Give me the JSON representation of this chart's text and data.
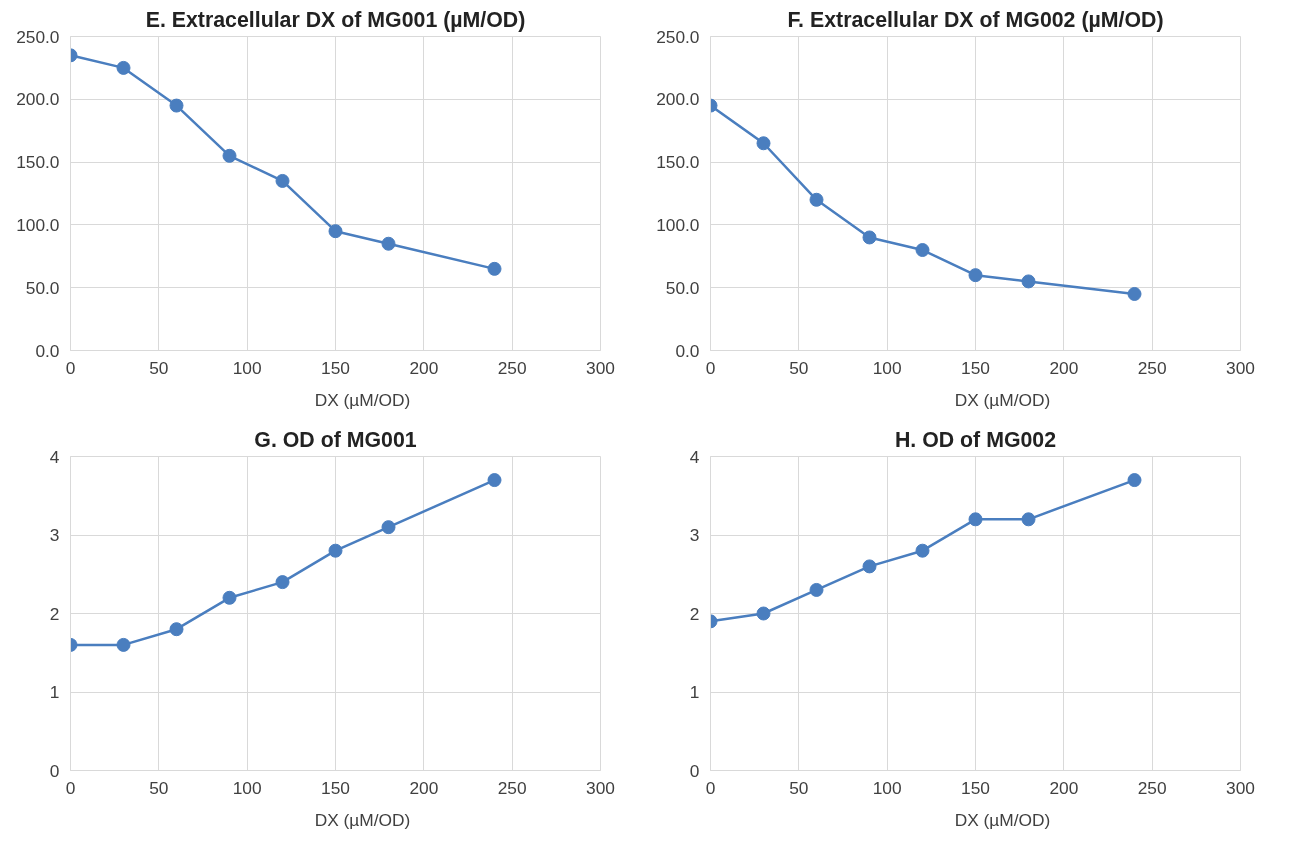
{
  "chart_data": [
    {
      "type": "line",
      "title": "E. Extracellular DX of MG001 (µM/OD)",
      "x": [
        0,
        30,
        60,
        90,
        120,
        150,
        180,
        240
      ],
      "series": [
        {
          "name": "DX (µM/OD)",
          "color": "#4a7ebf",
          "values": [
            235,
            225,
            195,
            155,
            135,
            95,
            85,
            65
          ]
        }
      ],
      "xlim": [
        0,
        300
      ],
      "xticks": [
        0,
        50,
        100,
        150,
        200,
        250,
        300
      ],
      "ylim": [
        0,
        250
      ],
      "yticks": [
        {
          "value": 0,
          "label": "0.0"
        },
        {
          "value": 50,
          "label": "50.0"
        },
        {
          "value": 100,
          "label": "100.0"
        },
        {
          "value": 150,
          "label": "150.0"
        },
        {
          "value": 200,
          "label": "200.0"
        },
        {
          "value": 250,
          "label": "250.0"
        }
      ],
      "grid": true,
      "legend": "bottom",
      "marker": "circle",
      "line_style": "solid"
    },
    {
      "type": "line",
      "title": "F. Extracellular DX of MG002 (µM/OD)",
      "x": [
        0,
        30,
        60,
        90,
        120,
        150,
        180,
        240
      ],
      "series": [
        {
          "name": "DX (µM/OD)",
          "color": "#4a7ebf",
          "values": [
            195,
            165,
            120,
            90,
            80,
            60,
            55,
            45
          ]
        }
      ],
      "xlim": [
        0,
        300
      ],
      "xticks": [
        0,
        50,
        100,
        150,
        200,
        250,
        300
      ],
      "ylim": [
        0,
        250
      ],
      "yticks": [
        {
          "value": 0,
          "label": "0.0"
        },
        {
          "value": 50,
          "label": "50.0"
        },
        {
          "value": 100,
          "label": "100.0"
        },
        {
          "value": 150,
          "label": "150.0"
        },
        {
          "value": 200,
          "label": "200.0"
        },
        {
          "value": 250,
          "label": "250.0"
        }
      ],
      "grid": true,
      "legend": "bottom",
      "marker": "circle",
      "line_style": "solid"
    },
    {
      "type": "line",
      "title": "G. OD of MG001",
      "x": [
        0,
        30,
        60,
        90,
        120,
        150,
        180,
        240
      ],
      "series": [
        {
          "name": "DX (µM/OD)",
          "color": "#4a7ebf",
          "values": [
            1.6,
            1.6,
            1.8,
            2.2,
            2.4,
            2.8,
            3.1,
            3.7
          ]
        }
      ],
      "xlim": [
        0,
        300
      ],
      "xticks": [
        0,
        50,
        100,
        150,
        200,
        250,
        300
      ],
      "ylim": [
        0,
        4
      ],
      "yticks": [
        0,
        1,
        2,
        3,
        4
      ],
      "grid": true,
      "legend": "bottom",
      "marker": "circle",
      "line_style": "solid"
    },
    {
      "type": "line",
      "title": "H. OD of MG002",
      "x": [
        0,
        30,
        60,
        90,
        120,
        150,
        180,
        240
      ],
      "series": [
        {
          "name": "DX (µM/OD)",
          "color": "#4a7ebf",
          "values": [
            1.9,
            2.0,
            2.3,
            2.6,
            2.8,
            3.2,
            3.2,
            3.7
          ]
        }
      ],
      "xlim": [
        0,
        300
      ],
      "xticks": [
        0,
        50,
        100,
        150,
        200,
        250,
        300
      ],
      "ylim": [
        0,
        4
      ],
      "yticks": [
        0,
        1,
        2,
        3,
        4
      ],
      "grid": true,
      "legend": "bottom",
      "marker": "circle",
      "line_style": "solid"
    }
  ]
}
